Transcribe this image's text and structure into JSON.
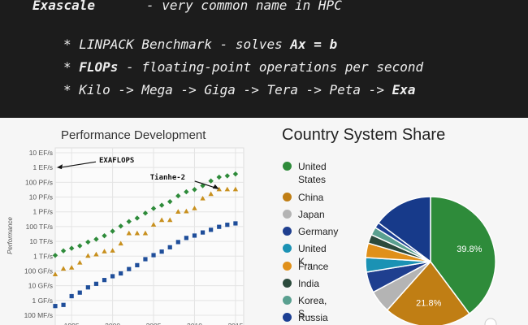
{
  "header": {
    "term": "Exascale",
    "definition": "- very common name in HPC",
    "bullets": [
      [
        {
          "text": "* LINPACK Benchmark - solves "
        },
        {
          "text": "Ax = b",
          "bold": true
        }
      ],
      [
        {
          "text": "* "
        },
        {
          "text": "FLOPs",
          "bold": true
        },
        {
          "text": " - floating-point operations per second"
        }
      ],
      [
        {
          "text": "* Kilo -> Mega -> Giga -> Tera -> Peta -> "
        },
        {
          "text": "Exa",
          "bold": true
        }
      ]
    ]
  },
  "chart_data": [
    {
      "type": "line",
      "title": "Performance Development",
      "y_label": "Performance",
      "log_y": true,
      "grid": true,
      "x": [
        1993,
        1994,
        1995,
        1996,
        1997,
        1998,
        1999,
        2000,
        2001,
        2002,
        2003,
        2004,
        2005,
        2006,
        2007,
        2008,
        2009,
        2010,
        2011,
        2012,
        2013,
        2014,
        2015
      ],
      "xlim": [
        1993,
        2016
      ],
      "xticks": [
        1995,
        2000,
        2005,
        2010,
        2015
      ],
      "ylim": [
        100000000,
        10000000000000000000
      ],
      "yticks": [
        {
          "value": 100000000,
          "label": "100 MF/s"
        },
        {
          "value": 1000000000,
          "label": "1 GF/s"
        },
        {
          "value": 10000000000,
          "label": "10 GF/s"
        },
        {
          "value": 100000000000,
          "label": "100 GF/s"
        },
        {
          "value": 1000000000000,
          "label": "1 TF/s"
        },
        {
          "value": 10000000000000,
          "label": "10 TF/s"
        },
        {
          "value": 100000000000000,
          "label": "100 TF/s"
        },
        {
          "value": 1000000000000000,
          "label": "1 PF/s"
        },
        {
          "value": 10000000000000000,
          "label": "10 PF/s"
        },
        {
          "value": 100000000000000000,
          "label": "100 PF/s"
        },
        {
          "value": 1000000000000000000,
          "label": "1 EF/s"
        },
        {
          "value": 10000000000000000000,
          "label": "10 EF/s"
        }
      ],
      "series": [
        {
          "color": "#2e8b3a",
          "marker": "diamond",
          "values": [
            1130000000000.0,
            2300000000000.0,
            3400000000000.0,
            5000000000000.0,
            9000000000000.0,
            14000000000000.0,
            24000000000000.0,
            49000000000000.0,
            108000000000000.0,
            220000000000000.0,
            375000000000000.0,
            813000000000000.0,
            1690000000000000.0,
            2800000000000000.0,
            4900000000000000.0,
            1.2e+16,
            2.26e+16,
            3.2e+16,
            5.89e+16,
            1.23e+17,
            2.23e+17,
            2.74e+17,
            3.63e+17
          ]
        },
        {
          "color": "#c8901e",
          "marker": "triangle",
          "values": [
            59700000000.0,
            143000000000.0,
            170000000000.0,
            368000000000.0,
            1070000000000.0,
            1340000000000.0,
            2120000000000.0,
            2380000000000.0,
            7200000000000.0,
            35900000000000.0,
            35900000000000.0,
            35900000000000.0,
            137000000000000.0,
            281000000000000.0,
            281000000000000.0,
            1030000000000000.0,
            1100000000000000.0,
            1760000000000000.0,
            8160000000000000.0,
            1.63e+16,
            3.39e+16,
            3.39e+16,
            3.39e+16
          ]
        },
        {
          "color": "#1f4e9a",
          "marker": "square",
          "values": [
            420000000.0,
            500000000.0,
            1960000000.0,
            3400000000.0,
            7700000000.0,
            13400000000.0,
            24200000000.0,
            43800000000.0,
            67800000000.0,
            134000000000.0,
            245000000000.0,
            624000000000.0,
            1170000000000.0,
            2030000000000.0,
            4000000000000.0,
            9000000000000.0,
            17100000000000.0,
            24700000000000.0,
            40100000000000.0,
            60800000000000.0,
            96600000000000.0,
            133000000000000.0,
            165000000000000.0
          ]
        }
      ],
      "annotations": [
        {
          "text": "EXAFLOPS",
          "x": 1993,
          "y": 1000000000000000000
        },
        {
          "text": "Tianhe-2",
          "x": 2013,
          "y": 33900000000000000
        }
      ]
    },
    {
      "type": "pie",
      "title": "Country System Share",
      "categories": [
        "United States",
        "China",
        "Japan",
        "Germany",
        "United K...",
        "France",
        "India",
        "Korea, S...",
        "Russia",
        null
      ],
      "values": [
        39.8,
        21.8,
        5.6,
        5.2,
        3.6,
        3.6,
        2.2,
        2.0,
        1.4,
        14.8
      ],
      "value_labels": [
        "39.8%",
        "21.8%",
        null,
        null,
        null,
        null,
        null,
        null,
        null,
        null
      ],
      "colors": [
        "#2e8b3a",
        "#c07e14",
        "#b4b4b4",
        "#1f3f8f",
        "#1b92b4",
        "#e0901a",
        "#2b4a3c",
        "#5aa090",
        "#1c3f93",
        "#173a8a"
      ]
    }
  ]
}
